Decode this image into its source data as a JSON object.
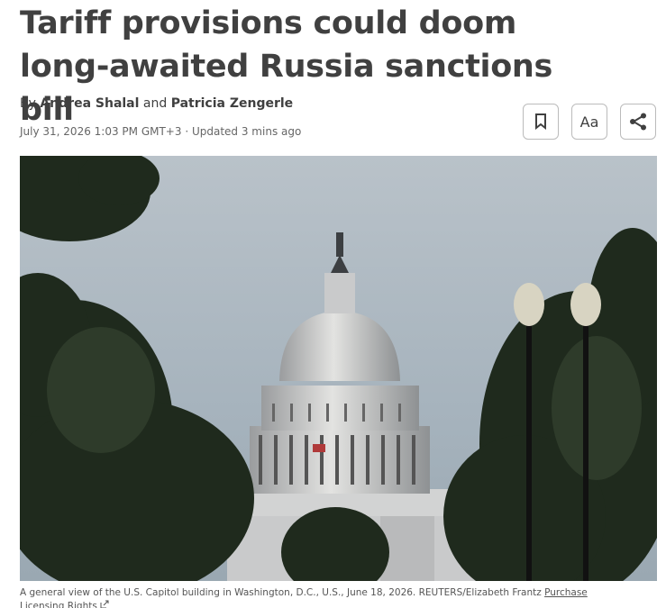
{
  "header": {
    "title": "Tariff provisions could doom long-awaited Russia sanctions bill"
  },
  "byline": {
    "prefix": "By",
    "authors": [
      "Andrea Shalal",
      "Patricia Zengerle"
    ],
    "conjunction": "and"
  },
  "dateline": {
    "published": "July 31, 2026 1:03 PM GMT+3",
    "separator": "·",
    "updated": "Updated 3 mins ago"
  },
  "toolbar": {
    "font_button": "Aa"
  },
  "image": {
    "caption": "A general view of the U.S. Capitol building in Washington, D.C., U.S., June 18, 2026. REUTERS/Elizabeth Frantz",
    "license_link": "Purchase Licensing Rights"
  }
}
